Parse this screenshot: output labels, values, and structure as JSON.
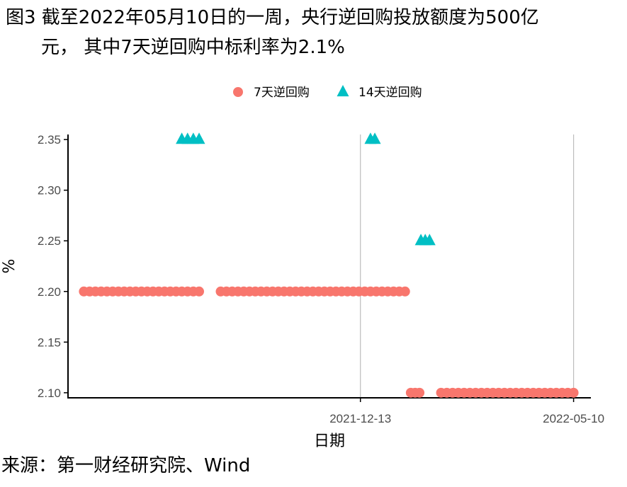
{
  "title": {
    "line1": "图3  截至2022年05月10日的一周，央行逆回购投放额度为500亿",
    "line2": "元， 其中7天逆回购中标利率为2.1%"
  },
  "source": "来源：第一财经研究院、Wind",
  "chart_data": {
    "type": "scatter",
    "xlabel": "日期",
    "ylabel": "%",
    "x_ticks": [
      "2021-12-13",
      "2022-05-10"
    ],
    "xlim": [
      "2021-05-24",
      "2022-05-22"
    ],
    "ylim": [
      2.095,
      2.355
    ],
    "y_ticks": [
      2.1,
      2.15,
      2.2,
      2.25,
      2.3,
      2.35
    ],
    "y_tick_labels": [
      "2.10",
      "2.15",
      "2.20",
      "2.25",
      "2.30",
      "2.35"
    ],
    "grid": "vertical lines at x ticks",
    "legend_position": "top",
    "series": [
      {
        "name": "7天逆回购",
        "marker": "circle",
        "color": "#F8766D",
        "points": [
          [
            "2021-06-04",
            2.2
          ],
          [
            "2021-06-08",
            2.2
          ],
          [
            "2021-06-12",
            2.2
          ],
          [
            "2021-06-16",
            2.2
          ],
          [
            "2021-06-20",
            2.2
          ],
          [
            "2021-06-24",
            2.2
          ],
          [
            "2021-06-28",
            2.2
          ],
          [
            "2021-07-02",
            2.2
          ],
          [
            "2021-07-06",
            2.2
          ],
          [
            "2021-07-10",
            2.2
          ],
          [
            "2021-07-14",
            2.2
          ],
          [
            "2021-07-18",
            2.2
          ],
          [
            "2021-07-22",
            2.2
          ],
          [
            "2021-07-26",
            2.2
          ],
          [
            "2021-07-30",
            2.2
          ],
          [
            "2021-08-03",
            2.2
          ],
          [
            "2021-08-07",
            2.2
          ],
          [
            "2021-08-11",
            2.2
          ],
          [
            "2021-08-15",
            2.2
          ],
          [
            "2021-08-19",
            2.2
          ],
          [
            "2021-08-23",
            2.2
          ],
          [
            "2021-09-07",
            2.2
          ],
          [
            "2021-09-11",
            2.2
          ],
          [
            "2021-09-15",
            2.2
          ],
          [
            "2021-09-19",
            2.2
          ],
          [
            "2021-09-23",
            2.2
          ],
          [
            "2021-09-27",
            2.2
          ],
          [
            "2021-10-01",
            2.2
          ],
          [
            "2021-10-05",
            2.2
          ],
          [
            "2021-10-09",
            2.2
          ],
          [
            "2021-10-13",
            2.2
          ],
          [
            "2021-10-17",
            2.2
          ],
          [
            "2021-10-21",
            2.2
          ],
          [
            "2021-10-25",
            2.2
          ],
          [
            "2021-10-29",
            2.2
          ],
          [
            "2021-11-02",
            2.2
          ],
          [
            "2021-11-06",
            2.2
          ],
          [
            "2021-11-10",
            2.2
          ],
          [
            "2021-11-14",
            2.2
          ],
          [
            "2021-11-18",
            2.2
          ],
          [
            "2021-11-22",
            2.2
          ],
          [
            "2021-11-26",
            2.2
          ],
          [
            "2021-11-30",
            2.2
          ],
          [
            "2021-12-04",
            2.2
          ],
          [
            "2021-12-08",
            2.2
          ],
          [
            "2021-12-12",
            2.2
          ],
          [
            "2021-12-16",
            2.2
          ],
          [
            "2021-12-20",
            2.2
          ],
          [
            "2021-12-24",
            2.2
          ],
          [
            "2021-12-28",
            2.2
          ],
          [
            "2022-01-01",
            2.2
          ],
          [
            "2022-01-05",
            2.2
          ],
          [
            "2022-01-09",
            2.2
          ],
          [
            "2022-01-13",
            2.2
          ],
          [
            "2022-01-17",
            2.1
          ],
          [
            "2022-01-20",
            2.1
          ],
          [
            "2022-01-23",
            2.1
          ],
          [
            "2022-02-07",
            2.1
          ],
          [
            "2022-02-11",
            2.1
          ],
          [
            "2022-02-15",
            2.1
          ],
          [
            "2022-02-19",
            2.1
          ],
          [
            "2022-02-23",
            2.1
          ],
          [
            "2022-02-27",
            2.1
          ],
          [
            "2022-03-03",
            2.1
          ],
          [
            "2022-03-07",
            2.1
          ],
          [
            "2022-03-11",
            2.1
          ],
          [
            "2022-03-15",
            2.1
          ],
          [
            "2022-03-19",
            2.1
          ],
          [
            "2022-03-23",
            2.1
          ],
          [
            "2022-03-27",
            2.1
          ],
          [
            "2022-03-31",
            2.1
          ],
          [
            "2022-04-04",
            2.1
          ],
          [
            "2022-04-08",
            2.1
          ],
          [
            "2022-04-12",
            2.1
          ],
          [
            "2022-04-16",
            2.1
          ],
          [
            "2022-04-20",
            2.1
          ],
          [
            "2022-04-24",
            2.1
          ],
          [
            "2022-04-28",
            2.1
          ],
          [
            "2022-05-02",
            2.1
          ],
          [
            "2022-05-06",
            2.1
          ],
          [
            "2022-05-10",
            2.1
          ]
        ]
      },
      {
        "name": "14天逆回购",
        "marker": "triangle",
        "color": "#00BFC4",
        "points": [
          [
            "2021-08-11",
            2.35
          ],
          [
            "2021-08-15",
            2.35
          ],
          [
            "2021-08-19",
            2.35
          ],
          [
            "2021-08-23",
            2.35
          ],
          [
            "2021-12-20",
            2.35
          ],
          [
            "2021-12-23",
            2.35
          ],
          [
            "2022-01-24",
            2.25
          ],
          [
            "2022-01-27",
            2.25
          ],
          [
            "2022-01-30",
            2.25
          ]
        ]
      }
    ]
  }
}
